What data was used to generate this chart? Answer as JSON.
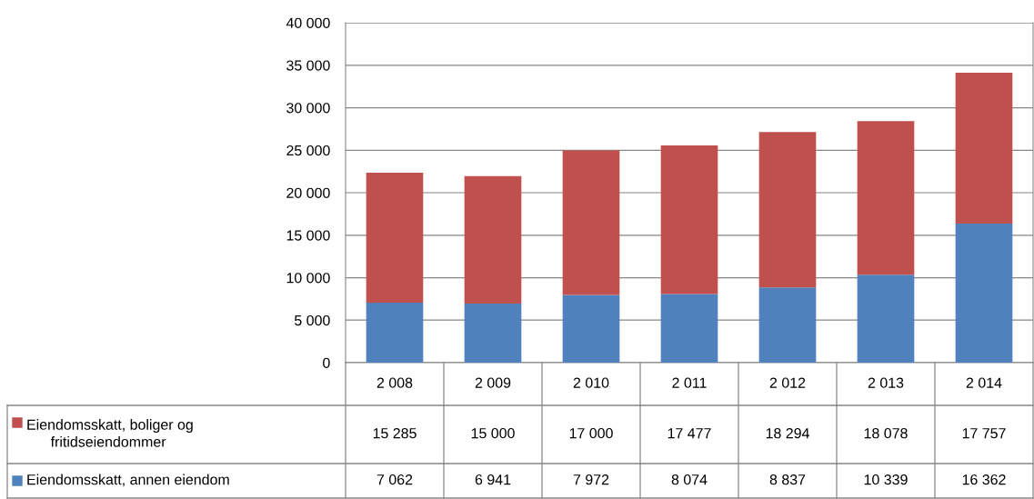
{
  "chart_data": {
    "type": "bar",
    "stacked": true,
    "categories": [
      "2 008",
      "2 009",
      "2 010",
      "2 011",
      "2 012",
      "2 013",
      "2 014"
    ],
    "series": [
      {
        "name": "Eiendomsskatt, annen eiendom",
        "color": "#4f81bd",
        "values": [
          7062,
          6941,
          7972,
          8074,
          8837,
          10339,
          16362
        ]
      },
      {
        "name": "Eiendomsskatt, boliger og fritidseiendommer",
        "color": "#c0504d",
        "values": [
          15285,
          15000,
          17000,
          17477,
          18294,
          18078,
          17757
        ]
      }
    ],
    "ylim": [
      0,
      40000
    ],
    "yticks": [
      {
        "value": 0,
        "label": "0"
      },
      {
        "value": 5000,
        "label": "5 000"
      },
      {
        "value": 10000,
        "label": "10 000"
      },
      {
        "value": 15000,
        "label": "15 000"
      },
      {
        "value": 20000,
        "label": "20 000"
      },
      {
        "value": 25000,
        "label": "25 000"
      },
      {
        "value": 30000,
        "label": "30 000"
      },
      {
        "value": 35000,
        "label": "35 000"
      },
      {
        "value": 40000,
        "label": "40 000"
      }
    ],
    "grid": "y",
    "legend": "bottom",
    "data_labels": true
  }
}
